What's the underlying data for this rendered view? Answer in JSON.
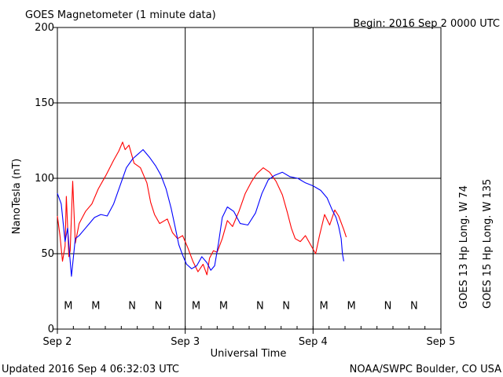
{
  "chart_data": {
    "type": "line",
    "title": "GOES Magnetometer (1 minute data)",
    "begin_label": "Begin:  2016 Sep 2 0000 UTC",
    "xlabel": "Universal Time",
    "ylabel": "NanoTesla (nT)",
    "x_ticks": [
      {
        "label": "Sep 2",
        "day": 0
      },
      {
        "label": "Sep 3",
        "day": 1
      },
      {
        "label": "Sep 4",
        "day": 2
      },
      {
        "label": "Sep 5",
        "day": 3
      }
    ],
    "xlim_days": [
      0,
      3
    ],
    "y_ticks": [
      0,
      50,
      100,
      150,
      200
    ],
    "ylim": [
      0,
      200
    ],
    "grid": true,
    "series": [
      {
        "name": "GOES 13 Hp  Long. W 74",
        "color": "#ff0000",
        "points": [
          [
            0.0,
            75
          ],
          [
            0.02,
            62
          ],
          [
            0.04,
            45
          ],
          [
            0.06,
            55
          ],
          [
            0.07,
            88
          ],
          [
            0.09,
            48
          ],
          [
            0.1,
            52
          ],
          [
            0.12,
            98
          ],
          [
            0.14,
            57
          ],
          [
            0.17,
            70
          ],
          [
            0.22,
            78
          ],
          [
            0.27,
            83
          ],
          [
            0.32,
            93
          ],
          [
            0.38,
            102
          ],
          [
            0.44,
            112
          ],
          [
            0.48,
            118
          ],
          [
            0.51,
            124
          ],
          [
            0.53,
            119
          ],
          [
            0.56,
            122
          ],
          [
            0.6,
            110
          ],
          [
            0.65,
            107
          ],
          [
            0.7,
            97
          ],
          [
            0.73,
            84
          ],
          [
            0.76,
            76
          ],
          [
            0.8,
            70
          ],
          [
            0.86,
            73
          ],
          [
            0.9,
            64
          ],
          [
            0.94,
            60
          ],
          [
            0.98,
            62
          ],
          [
            1.02,
            54
          ],
          [
            1.06,
            45
          ],
          [
            1.1,
            38
          ],
          [
            1.14,
            43
          ],
          [
            1.17,
            36
          ],
          [
            1.19,
            47
          ],
          [
            1.22,
            52
          ],
          [
            1.25,
            51
          ],
          [
            1.29,
            60
          ],
          [
            1.33,
            72
          ],
          [
            1.37,
            68
          ],
          [
            1.42,
            78
          ],
          [
            1.47,
            90
          ],
          [
            1.52,
            98
          ],
          [
            1.56,
            103
          ],
          [
            1.61,
            107
          ],
          [
            1.66,
            104
          ],
          [
            1.71,
            98
          ],
          [
            1.76,
            89
          ],
          [
            1.8,
            77
          ],
          [
            1.83,
            67
          ],
          [
            1.86,
            60
          ],
          [
            1.9,
            58
          ],
          [
            1.94,
            62
          ],
          [
            1.98,
            56
          ],
          [
            2.02,
            50
          ],
          [
            2.05,
            62
          ],
          [
            2.09,
            76
          ],
          [
            2.13,
            69
          ],
          [
            2.17,
            79
          ],
          [
            2.2,
            75
          ],
          [
            2.24,
            66
          ],
          [
            2.26,
            61
          ]
        ]
      },
      {
        "name": "GOES 15 Hp  Long. W 135",
        "color": "#0000ff",
        "points": [
          [
            0.0,
            90
          ],
          [
            0.03,
            83
          ],
          [
            0.06,
            58
          ],
          [
            0.08,
            67
          ],
          [
            0.1,
            45
          ],
          [
            0.11,
            35
          ],
          [
            0.14,
            60
          ],
          [
            0.17,
            62
          ],
          [
            0.21,
            66
          ],
          [
            0.25,
            70
          ],
          [
            0.29,
            74
          ],
          [
            0.34,
            76
          ],
          [
            0.39,
            75
          ],
          [
            0.44,
            83
          ],
          [
            0.49,
            95
          ],
          [
            0.54,
            107
          ],
          [
            0.59,
            113
          ],
          [
            0.63,
            116
          ],
          [
            0.67,
            119
          ],
          [
            0.72,
            114
          ],
          [
            0.77,
            108
          ],
          [
            0.81,
            102
          ],
          [
            0.85,
            93
          ],
          [
            0.89,
            80
          ],
          [
            0.92,
            68
          ],
          [
            0.95,
            56
          ],
          [
            0.98,
            49
          ],
          [
            1.01,
            43
          ],
          [
            1.05,
            40
          ],
          [
            1.09,
            42
          ],
          [
            1.13,
            48
          ],
          [
            1.17,
            44
          ],
          [
            1.2,
            39
          ],
          [
            1.23,
            42
          ],
          [
            1.26,
            57
          ],
          [
            1.29,
            74
          ],
          [
            1.33,
            81
          ],
          [
            1.38,
            78
          ],
          [
            1.43,
            70
          ],
          [
            1.49,
            69
          ],
          [
            1.55,
            77
          ],
          [
            1.6,
            90
          ],
          [
            1.65,
            99
          ],
          [
            1.7,
            102
          ],
          [
            1.76,
            104
          ],
          [
            1.82,
            101
          ],
          [
            1.88,
            100
          ],
          [
            1.94,
            97
          ],
          [
            2.0,
            95
          ],
          [
            2.06,
            92
          ],
          [
            2.11,
            87
          ],
          [
            2.15,
            79
          ],
          [
            2.18,
            74
          ],
          [
            2.2,
            68
          ],
          [
            2.22,
            60
          ],
          [
            2.23,
            50
          ],
          [
            2.24,
            45
          ]
        ]
      }
    ],
    "markers": [
      {
        "label": "M",
        "day": 0.085,
        "color": "#ff0000"
      },
      {
        "label": "M",
        "day": 0.3,
        "color": "#0000ff"
      },
      {
        "label": "N",
        "day": 0.585,
        "color": "#ff0000"
      },
      {
        "label": "N",
        "day": 0.79,
        "color": "#0000ff"
      },
      {
        "label": "M",
        "day": 1.085,
        "color": "#ff0000"
      },
      {
        "label": "M",
        "day": 1.3,
        "color": "#0000ff"
      },
      {
        "label": "N",
        "day": 1.585,
        "color": "#ff0000"
      },
      {
        "label": "N",
        "day": 1.79,
        "color": "#0000ff"
      },
      {
        "label": "M",
        "day": 2.085,
        "color": "#ff0000"
      },
      {
        "label": "M",
        "day": 2.3,
        "color": "#0000ff"
      },
      {
        "label": "N",
        "day": 2.585,
        "color": "#ff0000"
      },
      {
        "label": "N",
        "day": 2.79,
        "color": "#0000ff"
      }
    ],
    "marker_level": 16
  },
  "footer": {
    "updated": "Updated 2016 Sep  4 06:32:03 UTC",
    "credit": "NOAA/SWPC Boulder, CO USA"
  }
}
